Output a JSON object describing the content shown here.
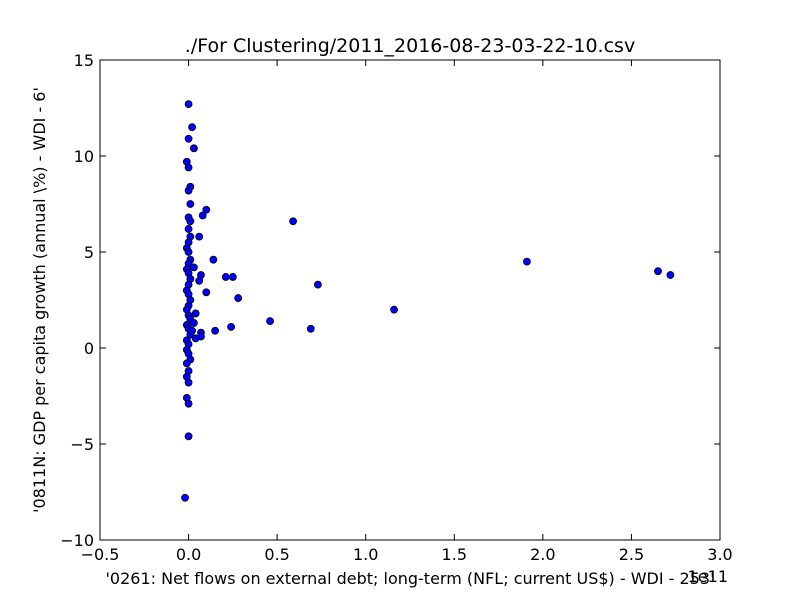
{
  "chart_data": {
    "type": "scatter",
    "title": "./For Clustering/2011_2016-08-23-03-22-10.csv",
    "xlabel": "'0261: Net flows on external debt; long-term  (NFL; current US$) - WDI - 253'",
    "ylabel": "'0811N: GDP per capita growth  (annual \\%) - WDI - 6'",
    "x_offset_label": "1e11",
    "xlim": [
      -0.5,
      3.0
    ],
    "ylim": [
      -10,
      15
    ],
    "xticks": [
      -0.5,
      0.0,
      0.5,
      1.0,
      1.5,
      2.0,
      2.5,
      3.0
    ],
    "xtick_labels": [
      "−0.5",
      "0.0",
      "0.5",
      "1.0",
      "1.5",
      "2.0",
      "2.5",
      "3.0"
    ],
    "yticks": [
      -10,
      -5,
      0,
      5,
      10,
      15
    ],
    "ytick_labels": [
      "−10",
      "−5",
      "0",
      "5",
      "10",
      "15"
    ],
    "grid": false,
    "marker_color": "#0000ff",
    "marker_edge_color": "#000000",
    "points": [
      {
        "x": 0.0,
        "y": 12.7
      },
      {
        "x": 0.02,
        "y": 11.5
      },
      {
        "x": 0.0,
        "y": 10.9
      },
      {
        "x": 0.03,
        "y": 10.4
      },
      {
        "x": -0.01,
        "y": 9.7
      },
      {
        "x": 0.0,
        "y": 9.4
      },
      {
        "x": 0.01,
        "y": 8.4
      },
      {
        "x": 0.0,
        "y": 8.2
      },
      {
        "x": 0.01,
        "y": 7.5
      },
      {
        "x": 0.0,
        "y": 6.8
      },
      {
        "x": 0.01,
        "y": 6.6
      },
      {
        "x": 0.0,
        "y": 6.2
      },
      {
        "x": 0.01,
        "y": 5.8
      },
      {
        "x": 0.0,
        "y": 5.5
      },
      {
        "x": -0.01,
        "y": 5.2
      },
      {
        "x": 0.0,
        "y": 5.0
      },
      {
        "x": 0.01,
        "y": 4.6
      },
      {
        "x": 0.0,
        "y": 4.4
      },
      {
        "x": -0.01,
        "y": 4.1
      },
      {
        "x": 0.0,
        "y": 3.9
      },
      {
        "x": 0.01,
        "y": 3.6
      },
      {
        "x": 0.0,
        "y": 3.3
      },
      {
        "x": -0.01,
        "y": 3.0
      },
      {
        "x": 0.0,
        "y": 2.8
      },
      {
        "x": 0.01,
        "y": 2.5
      },
      {
        "x": 0.0,
        "y": 2.2
      },
      {
        "x": -0.01,
        "y": 2.0
      },
      {
        "x": 0.0,
        "y": 1.7
      },
      {
        "x": 0.01,
        "y": 1.5
      },
      {
        "x": -0.01,
        "y": 1.2
      },
      {
        "x": 0.0,
        "y": 1.0
      },
      {
        "x": 0.01,
        "y": 0.7
      },
      {
        "x": -0.01,
        "y": 0.4
      },
      {
        "x": 0.0,
        "y": 0.2
      },
      {
        "x": -0.01,
        "y": -0.1
      },
      {
        "x": 0.0,
        "y": -0.3
      },
      {
        "x": 0.01,
        "y": -0.6
      },
      {
        "x": -0.01,
        "y": -0.8
      },
      {
        "x": 0.0,
        "y": -1.2
      },
      {
        "x": -0.01,
        "y": -1.5
      },
      {
        "x": 0.0,
        "y": -1.8
      },
      {
        "x": -0.01,
        "y": -2.6
      },
      {
        "x": 0.0,
        "y": -2.9
      },
      {
        "x": 0.0,
        "y": -4.6
      },
      {
        "x": -0.02,
        "y": -7.8
      },
      {
        "x": 0.03,
        "y": 4.2
      },
      {
        "x": 0.04,
        "y": 1.8
      },
      {
        "x": 0.03,
        "y": 1.3
      },
      {
        "x": 0.02,
        "y": 0.9
      },
      {
        "x": 0.04,
        "y": 0.5
      },
      {
        "x": 0.07,
        "y": 0.8
      },
      {
        "x": 0.07,
        "y": 0.6
      },
      {
        "x": 0.06,
        "y": 5.8
      },
      {
        "x": 0.08,
        "y": 6.9
      },
      {
        "x": 0.1,
        "y": 7.2
      },
      {
        "x": 0.07,
        "y": 3.8
      },
      {
        "x": 0.06,
        "y": 3.5
      },
      {
        "x": 0.1,
        "y": 2.9
      },
      {
        "x": 0.14,
        "y": 4.6
      },
      {
        "x": 0.15,
        "y": 0.9
      },
      {
        "x": 0.21,
        "y": 3.7
      },
      {
        "x": 0.25,
        "y": 3.7
      },
      {
        "x": 0.28,
        "y": 2.6
      },
      {
        "x": 0.24,
        "y": 1.1
      },
      {
        "x": 0.46,
        "y": 1.4
      },
      {
        "x": 0.59,
        "y": 6.6
      },
      {
        "x": 0.73,
        "y": 3.3
      },
      {
        "x": 0.69,
        "y": 1.0
      },
      {
        "x": 1.16,
        "y": 2.0
      },
      {
        "x": 1.91,
        "y": 4.5
      },
      {
        "x": 2.65,
        "y": 4.0
      },
      {
        "x": 2.72,
        "y": 3.8
      }
    ]
  }
}
